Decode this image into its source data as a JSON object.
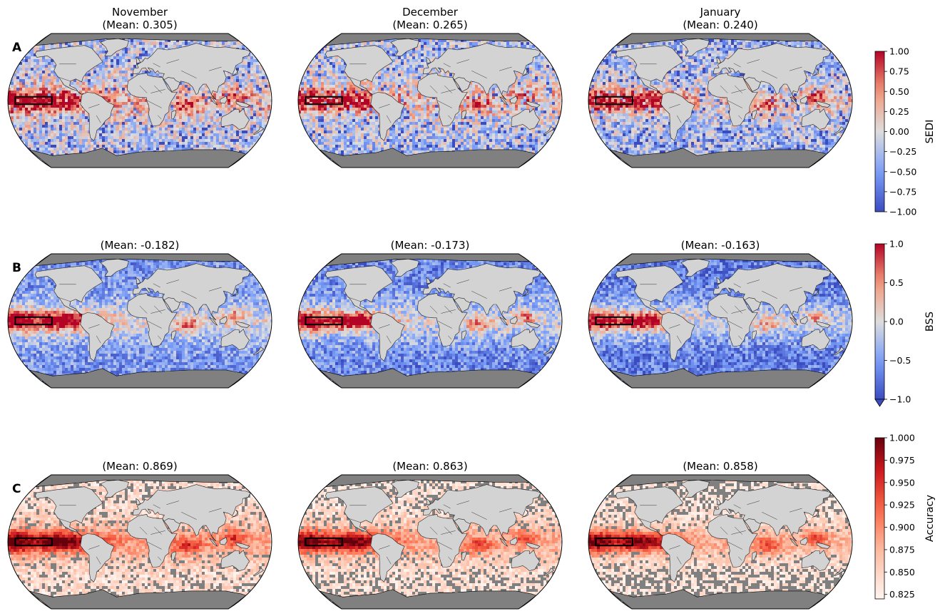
{
  "chart_data": {
    "type": "heatmap",
    "projection": "Robinson (global map)",
    "months": [
      "November",
      "December",
      "January"
    ],
    "highlight_box": "Niño 3.4 region (black rectangle in equatorial Pacific)",
    "rows": [
      {
        "panel_label": "A",
        "metric": "SEDI",
        "titles": [
          "November\n(Mean: 0.305)",
          "December\n(Mean: 0.265)",
          "January\n(Mean: 0.240)"
        ],
        "means": [
          0.305,
          0.265,
          0.24
        ],
        "colorbar": {
          "label": "SEDI",
          "colormap": "coolwarm",
          "range": [
            -1.0,
            1.0
          ],
          "ticks": [
            "1.00",
            "0.75",
            "0.50",
            "0.25",
            "0.00",
            "−0.25",
            "−0.50",
            "−0.75",
            "−1.00"
          ],
          "extend_min": false
        }
      },
      {
        "panel_label": "B",
        "metric": "BSS",
        "titles": [
          "(Mean: -0.182)",
          "(Mean: -0.173)",
          "(Mean: -0.163)"
        ],
        "means": [
          -0.182,
          -0.173,
          -0.163
        ],
        "colorbar": {
          "label": "BSS",
          "colormap": "coolwarm",
          "range": [
            -1.0,
            1.0
          ],
          "ticks": [
            "1.0",
            "0.5",
            "0.0",
            "−0.5",
            "−1.0"
          ],
          "extend_min": true
        }
      },
      {
        "panel_label": "C",
        "metric": "Accuracy",
        "titles": [
          "(Mean: 0.869)",
          "(Mean: 0.863)",
          "(Mean: 0.858)"
        ],
        "means": [
          0.869,
          0.863,
          0.858
        ],
        "colorbar": {
          "label": "Accuracy",
          "colormap": "Reds",
          "range": [
            0.82,
            1.0
          ],
          "ticks": [
            "1.000",
            "0.975",
            "0.950",
            "0.925",
            "0.900",
            "0.875",
            "0.850",
            "0.825"
          ],
          "extend_min": false
        }
      }
    ],
    "colors": {
      "land": "#d3d3d3",
      "ice_nodata": "#808080",
      "coolwarm_low": "#3b4cc0",
      "coolwarm_mid": "#dddddd",
      "coolwarm_high": "#b40426",
      "reds_low": "#fff5f0",
      "reds_high": "#67000d"
    }
  }
}
